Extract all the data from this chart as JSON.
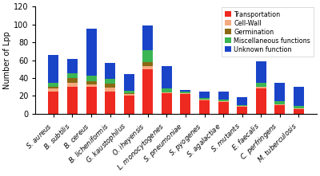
{
  "categories": [
    "S. aureus",
    "B. subtilis",
    "B. cereus",
    "B. licheniformis",
    "G. kaustophilus",
    "O. iheyensis",
    "L. monocytogenes",
    "S. pneumoniae",
    "S. pyogenes",
    "S. agalactiae",
    "S. mutants",
    "E. faecalis",
    "C. perfringens",
    "M. tuberculosis"
  ],
  "transportation": [
    25,
    30,
    30,
    25,
    20,
    50,
    23,
    22,
    15,
    13,
    8,
    28,
    10,
    5
  ],
  "cell_wall": [
    3,
    5,
    3,
    4,
    2,
    3,
    1,
    1,
    1,
    1,
    1,
    2,
    1,
    1
  ],
  "germination": [
    2,
    5,
    3,
    5,
    1,
    5,
    0,
    0,
    0,
    0,
    0,
    0,
    0,
    0
  ],
  "misc": [
    5,
    5,
    7,
    5,
    3,
    13,
    4,
    2,
    2,
    2,
    1,
    5,
    3,
    3
  ],
  "unknown": [
    31,
    16,
    52,
    18,
    18,
    28,
    25,
    2,
    7,
    9,
    9,
    24,
    21,
    21
  ],
  "colors": {
    "transportation": "#ee2920",
    "cell_wall": "#f5a97f",
    "germination": "#8b6914",
    "misc": "#3cb554",
    "unknown": "#1a44c8"
  },
  "ylabel": "Number of Lpp",
  "ylim": [
    0,
    120
  ],
  "yticks": [
    0,
    20,
    40,
    60,
    80,
    100,
    120
  ],
  "legend_labels": [
    "Transportation",
    "Cell-Wall",
    "Germination",
    "Miscellaneous functions",
    "Unknown function"
  ],
  "figure_width": 4.0,
  "figure_height": 2.21,
  "dpi": 100
}
